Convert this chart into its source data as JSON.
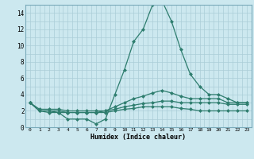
{
  "xlabel": "Humidex (Indice chaleur)",
  "x": [
    0,
    1,
    2,
    3,
    4,
    5,
    6,
    7,
    8,
    9,
    10,
    11,
    12,
    13,
    14,
    15,
    16,
    17,
    18,
    19,
    20,
    21,
    22,
    23
  ],
  "line1": [
    3,
    2,
    2,
    1.8,
    1,
    1,
    1,
    0.4,
    1,
    4,
    7,
    10.5,
    12,
    15,
    15.5,
    13,
    9.5,
    6.5,
    5,
    4,
    4,
    3.5,
    3,
    3
  ],
  "line2": [
    3,
    2.2,
    2.2,
    2.2,
    2,
    2,
    2,
    2,
    2,
    2.5,
    3,
    3.5,
    3.8,
    4.2,
    4.5,
    4.2,
    3.8,
    3.5,
    3.5,
    3.5,
    3.5,
    3,
    3,
    3
  ],
  "line3": [
    3,
    2,
    2,
    2,
    1.8,
    1.8,
    1.8,
    1.8,
    2,
    2.2,
    2.5,
    2.7,
    2.9,
    3,
    3.2,
    3.2,
    3,
    3,
    3,
    3,
    3,
    2.8,
    2.8,
    2.8
  ],
  "line4": [
    3,
    2,
    1.8,
    1.8,
    1.8,
    1.8,
    1.8,
    1.8,
    1.8,
    2,
    2.2,
    2.3,
    2.5,
    2.5,
    2.5,
    2.5,
    2.3,
    2.2,
    2,
    2,
    2,
    2,
    2,
    2
  ],
  "line_color": "#2e7d6e",
  "bg_color": "#cce8ef",
  "grid_color": "#aacdd8",
  "ylim": [
    0,
    15
  ],
  "xlim": [
    0,
    23
  ]
}
